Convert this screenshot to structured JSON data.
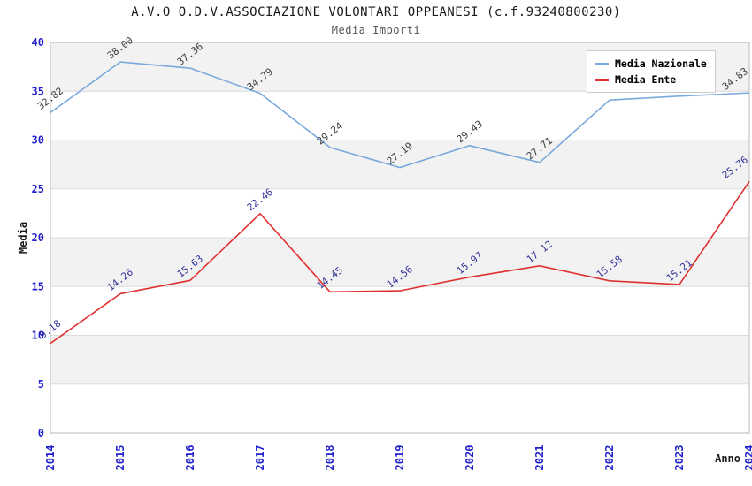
{
  "page": {
    "title": "A.V.O O.D.V.ASSOCIAZIONE VOLONTARI OPPEANESI (c.f.93240800230)",
    "subtitle": "Media Importi"
  },
  "legend": {
    "items": [
      {
        "label": "Media Nazionale",
        "color": "#7aa9dc"
      },
      {
        "label": "Media Ente",
        "color": "#e03131"
      }
    ]
  },
  "chart_data": {
    "type": "line",
    "title": "A.V.O O.D.V.ASSOCIAZIONE VOLONTARI OPPEANESI (c.f.93240800230)",
    "subtitle": "Media Importi",
    "xlabel": "Anno",
    "ylabel": "Media",
    "x": [
      "2014",
      "2015",
      "2016",
      "2017",
      "2018",
      "2019",
      "2020",
      "2021",
      "2022",
      "2023",
      "2024"
    ],
    "series": [
      {
        "name": "Media Nazionale",
        "color": "#7aa9dc",
        "label_color": "#3d3d3d",
        "values": [
          32.82,
          38.0,
          37.36,
          34.79,
          29.24,
          27.19,
          29.43,
          27.71,
          34.1,
          34.5,
          34.83
        ],
        "labels": [
          "32.82",
          "38.00",
          "37.36",
          "34.79",
          "29.24",
          "27.19",
          "29.43",
          "27.71",
          "",
          "",
          "34.83"
        ]
      },
      {
        "name": "Media Ente",
        "color": "#e03131",
        "label_color": "#333399",
        "values": [
          9.18,
          14.26,
          15.63,
          22.46,
          14.45,
          14.56,
          15.97,
          17.12,
          15.58,
          15.21,
          25.76
        ],
        "labels": [
          "9.18",
          "14.26",
          "15.63",
          "22.46",
          "14.45",
          "14.56",
          "15.97",
          "17.12",
          "15.58",
          "15.21",
          "25.76"
        ]
      }
    ],
    "ylim": [
      0,
      40
    ],
    "yticks": [
      0,
      5,
      10,
      15,
      20,
      25,
      30,
      35,
      40
    ],
    "legend_position": "top-right",
    "grid": "horizontal-bands",
    "colors": {
      "tick_label": "#2222cc",
      "axis_title": "#1a1a1a",
      "band_gray": "#f2f2f2",
      "gridline": "#dcdcdc",
      "plot_border": "#c4c4c4"
    }
  }
}
